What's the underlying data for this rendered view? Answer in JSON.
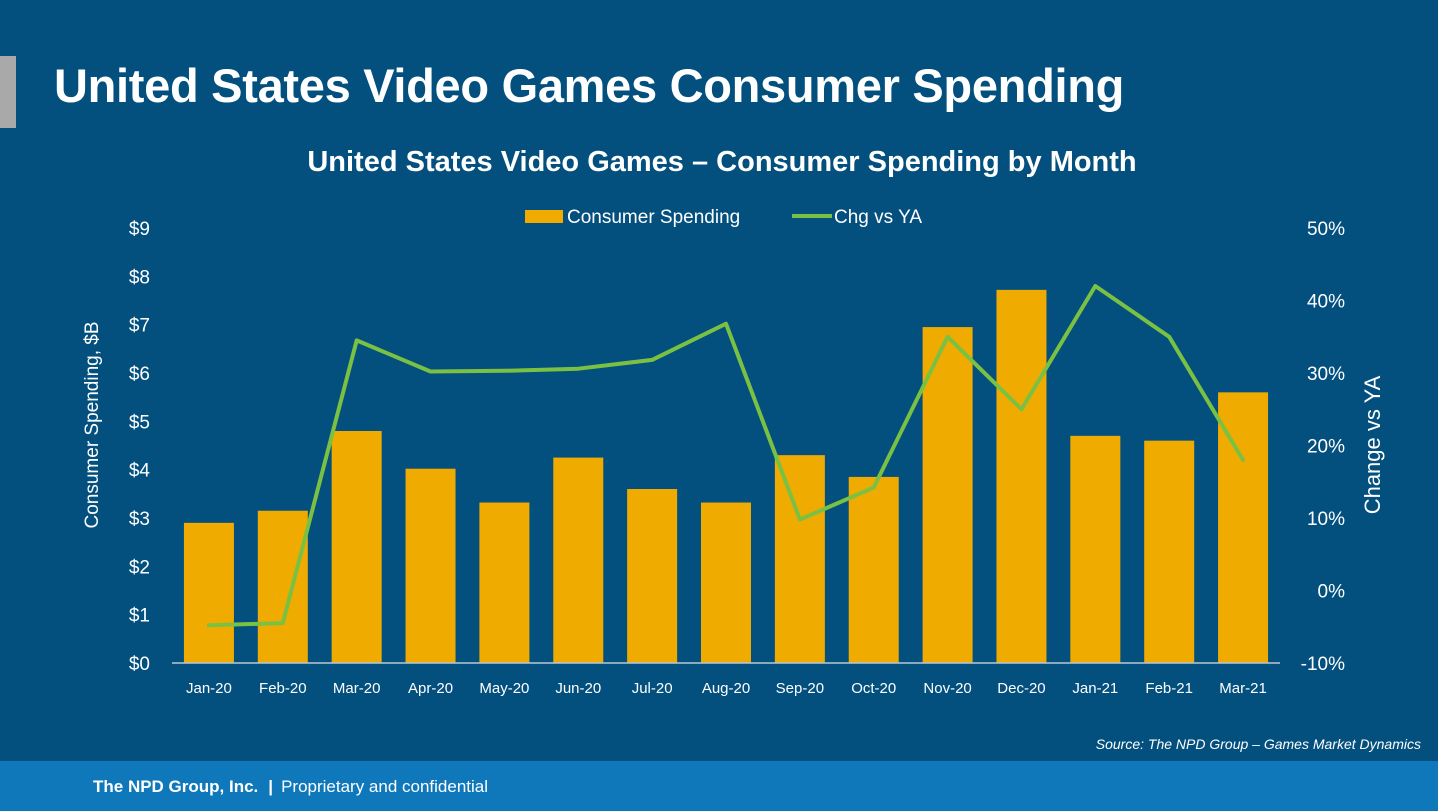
{
  "slide": {
    "title": "United States Video Games Consumer Spending",
    "source": "Source: The NPD Group – Games Market Dynamics"
  },
  "footer": {
    "company": "The NPD Group, Inc.",
    "separator": "|",
    "tagline": "Proprietary and confidential"
  },
  "colors": {
    "background": "#03507f",
    "bar": "#f0ab00",
    "line": "#7ac143",
    "footer": "#0f78bb",
    "text": "#ffffff"
  },
  "chart_data": {
    "type": "bar",
    "title": "United States Video Games – Consumer Spending by Month",
    "categories": [
      "Jan-20",
      "Feb-20",
      "Mar-20",
      "Apr-20",
      "May-20",
      "Jun-20",
      "Jul-20",
      "Aug-20",
      "Sep-20",
      "Oct-20",
      "Nov-20",
      "Dec-20",
      "Jan-21",
      "Feb-21",
      "Mar-21"
    ],
    "series": [
      {
        "name": "Consumer Spending",
        "type": "bar",
        "axis": "left",
        "values": [
          2.9,
          3.15,
          4.8,
          4.02,
          3.32,
          4.25,
          3.6,
          3.32,
          4.3,
          3.85,
          6.95,
          7.72,
          4.7,
          4.6,
          5.6
        ]
      },
      {
        "name": "Chg vs YA",
        "type": "line",
        "axis": "right",
        "values": [
          -4.8,
          -4.5,
          34.5,
          30.2,
          30.3,
          30.6,
          31.8,
          36.8,
          9.8,
          14.2,
          35.0,
          25.0,
          42.0,
          35.0,
          18.0
        ]
      }
    ],
    "ylabel": "Consumer Spending, $B",
    "y2label": "Change vs YA",
    "ylim": [
      0,
      9
    ],
    "y2lim": [
      -10,
      50
    ],
    "yticks": [
      0,
      1,
      2,
      3,
      4,
      5,
      6,
      7,
      8,
      9
    ],
    "ytick_labels": [
      "$0",
      "$1",
      "$2",
      "$3",
      "$4",
      "$5",
      "$6",
      "$7",
      "$8",
      "$9"
    ],
    "y2ticks": [
      -10,
      0,
      10,
      20,
      30,
      40,
      50
    ],
    "y2tick_labels": [
      "-10%",
      "0%",
      "10%",
      "20%",
      "30%",
      "40%",
      "50%"
    ],
    "legend_position": "top-center",
    "grid": false
  }
}
